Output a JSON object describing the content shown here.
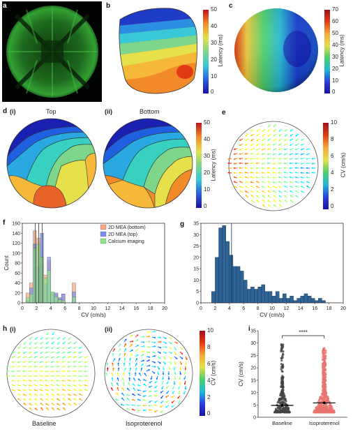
{
  "panels": {
    "a": {
      "label": "a"
    },
    "b": {
      "label": "b"
    },
    "c": {
      "label": "c"
    },
    "d": {
      "label": "d",
      "sub_i": "(i)",
      "sub_ii": "(ii)",
      "title_i": "Top",
      "title_ii": "Bottom"
    },
    "e": {
      "label": "e"
    },
    "f": {
      "label": "f"
    },
    "g": {
      "label": "g"
    },
    "h": {
      "label": "h",
      "sub_i": "(i)",
      "sub_ii": "(ii)",
      "caption_i": "Baseline",
      "caption_ii": "Isoproterenol"
    },
    "i": {
      "label": "i"
    }
  },
  "colorbars": {
    "b": {
      "title": "Latency (ms)",
      "ticks": [
        "50",
        "40",
        "30",
        "20",
        "10",
        "0"
      ]
    },
    "c": {
      "title": "Latency (ms)",
      "ticks": [
        "70",
        "60",
        "50",
        "40",
        "30",
        "20",
        "10",
        "0"
      ]
    },
    "d": {
      "title": "Latency (ms)",
      "ticks": [
        "50",
        "40",
        "30",
        "20",
        "10",
        "0"
      ]
    },
    "e": {
      "title": "CV (cm/s)",
      "ticks": [
        "10",
        "8",
        "6",
        "4",
        "2",
        "0"
      ]
    },
    "h": {
      "title": "CV (cm/s)",
      "ticks": [
        "10",
        "8",
        "6",
        "4",
        "2",
        "0"
      ]
    }
  },
  "colors": {
    "bottom": "#f4a582",
    "top": "#7b8ef0",
    "calcium": "#8ee68a",
    "g_bar": "#2f6496",
    "baseline_pts": "#444444",
    "iso_pts": "#e8736f"
  },
  "chart_data": [
    {
      "type": "bar",
      "panel": "f",
      "xlabel": "CV (cm/s)",
      "ylabel": "Count",
      "xlim": [
        0,
        20
      ],
      "ylim": [
        0,
        160
      ],
      "xticks": [
        "0",
        "2",
        "4",
        "6",
        "8",
        "10",
        "12",
        "14",
        "16",
        "18",
        "20"
      ],
      "yticks": [
        "0",
        "20",
        "40",
        "60",
        "80",
        "100",
        "120",
        "140",
        "160"
      ],
      "legend_placement": "top-right",
      "bin_width": 0.5,
      "series": [
        {
          "name": "2D MEA (bottom)",
          "bin_starts": [
            0.5,
            1.0,
            1.5,
            2.0,
            2.5,
            3.0,
            3.5,
            4.0,
            4.5,
            5.0,
            5.5,
            6.0,
            7.0
          ],
          "values": [
            20,
            40,
            145,
            130,
            78,
            56,
            85,
            20,
            18,
            10,
            18,
            0,
            40
          ]
        },
        {
          "name": "2D MEA (top)",
          "bin_starts": [
            0.5,
            1.0,
            1.5,
            2.0,
            2.5,
            3.0,
            3.5,
            4.0,
            4.5,
            5.0,
            5.5,
            6.0,
            7.0
          ],
          "values": [
            5,
            30,
            118,
            72,
            140,
            38,
            92,
            20,
            20,
            10,
            18,
            0,
            22
          ]
        },
        {
          "name": "Calcium imaging",
          "bin_starts": [
            0.5,
            1.0,
            1.5,
            2.0,
            2.5,
            3.0,
            3.5,
            4.0,
            4.5,
            5.0,
            5.5,
            6.0,
            7.0
          ],
          "values": [
            10,
            18,
            110,
            118,
            92,
            50,
            65,
            22,
            12,
            6,
            5,
            0,
            12
          ]
        }
      ],
      "mean_lines": [
        2.3,
        2.8,
        1.8
      ]
    },
    {
      "type": "bar",
      "panel": "g",
      "xlabel": "CV (cm/s)",
      "ylabel": "",
      "xlim": [
        0,
        20
      ],
      "ylim": [
        0,
        35
      ],
      "xticks": [
        "0",
        "2",
        "4",
        "6",
        "8",
        "10",
        "12",
        "14",
        "16",
        "18",
        "20"
      ],
      "yticks": [
        "0",
        "5",
        "10",
        "15",
        "20",
        "25",
        "30",
        "35"
      ],
      "bin_width": 0.5,
      "bin_starts": [
        1.5,
        2.0,
        2.5,
        3.0,
        3.5,
        4.0,
        4.5,
        5.0,
        5.5,
        6.0,
        6.5,
        7.0,
        7.5,
        8.0,
        8.5,
        9.0,
        9.5,
        10.0,
        10.5,
        11.0,
        11.5,
        12.0,
        12.5,
        13.0,
        13.5,
        14.0,
        14.5,
        15.0,
        15.5,
        16.0,
        16.5,
        17.0
      ],
      "values": [
        5,
        20,
        33,
        34,
        27,
        21,
        16,
        16,
        14,
        10,
        6,
        7,
        6,
        7,
        8,
        5,
        5,
        3,
        5,
        2,
        4,
        2,
        3,
        1,
        2,
        3,
        4,
        3,
        2,
        1,
        2,
        1
      ],
      "mean_line": 4.3
    },
    {
      "type": "scatter",
      "panel": "i",
      "ylabel": "CV (cm/s)",
      "ylim": [
        0,
        35
      ],
      "yticks": [
        "0",
        "5",
        "10",
        "15",
        "20",
        "25",
        "30",
        "35"
      ],
      "categories": [
        "Baseline",
        "Isoproterenol"
      ],
      "means": [
        4.8,
        5.8
      ],
      "significance": "****",
      "baseline_max": 30,
      "iso_max": 28
    }
  ]
}
